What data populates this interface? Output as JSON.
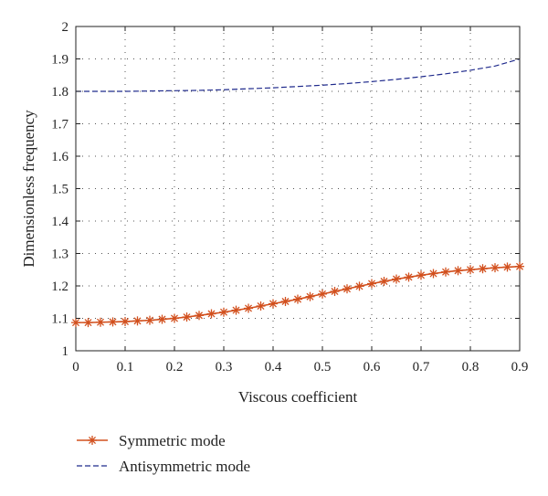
{
  "chart_data": {
    "type": "line",
    "title": "",
    "xlabel": "Viscous coefficient",
    "ylabel": "Dimensionless frequency",
    "xlim": [
      0,
      0.9
    ],
    "ylim": [
      1,
      2
    ],
    "xticks": [
      0,
      0.1,
      0.2,
      0.3,
      0.4,
      0.5,
      0.6,
      0.7,
      0.8,
      0.9
    ],
    "xtick_labels": [
      "0",
      "0.1",
      "0.2",
      "0.3",
      "0.4",
      "0.5",
      "0.6",
      "0.7",
      "0.8",
      "0.9"
    ],
    "yticks": [
      1,
      1.1,
      1.2,
      1.3,
      1.4,
      1.5,
      1.6,
      1.7,
      1.8,
      1.9,
      2
    ],
    "ytick_labels": [
      "1",
      "1.1",
      "1.2",
      "1.3",
      "1.4",
      "1.5",
      "1.6",
      "1.7",
      "1.8",
      "1.9",
      "2"
    ],
    "grid": true,
    "legend_position": "below",
    "series": [
      {
        "name": "Symmetric mode",
        "color": "#d2501e",
        "style": "solid-asterisk",
        "x": [
          0,
          0.025,
          0.05,
          0.075,
          0.1,
          0.125,
          0.15,
          0.175,
          0.2,
          0.225,
          0.25,
          0.275,
          0.3,
          0.325,
          0.35,
          0.375,
          0.4,
          0.425,
          0.45,
          0.475,
          0.5,
          0.525,
          0.55,
          0.575,
          0.6,
          0.625,
          0.65,
          0.675,
          0.7,
          0.725,
          0.75,
          0.775,
          0.8,
          0.825,
          0.85,
          0.875,
          0.9
        ],
        "y": [
          1.087,
          1.087,
          1.088,
          1.089,
          1.09,
          1.092,
          1.094,
          1.097,
          1.1,
          1.104,
          1.109,
          1.114,
          1.119,
          1.125,
          1.131,
          1.138,
          1.145,
          1.152,
          1.159,
          1.167,
          1.175,
          1.183,
          1.191,
          1.199,
          1.207,
          1.214,
          1.221,
          1.227,
          1.233,
          1.238,
          1.243,
          1.247,
          1.25,
          1.253,
          1.256,
          1.258,
          1.26
        ]
      },
      {
        "name": "Antisymmetric mode",
        "color": "#1f2a8c",
        "style": "dashed",
        "x": [
          0,
          0.05,
          0.1,
          0.15,
          0.2,
          0.25,
          0.3,
          0.35,
          0.4,
          0.45,
          0.5,
          0.55,
          0.6,
          0.65,
          0.7,
          0.75,
          0.8,
          0.85,
          0.9
        ],
        "y": [
          1.8,
          1.8,
          1.8,
          1.801,
          1.802,
          1.803,
          1.805,
          1.808,
          1.811,
          1.815,
          1.819,
          1.824,
          1.83,
          1.837,
          1.845,
          1.854,
          1.865,
          1.878,
          1.9
        ]
      }
    ]
  }
}
